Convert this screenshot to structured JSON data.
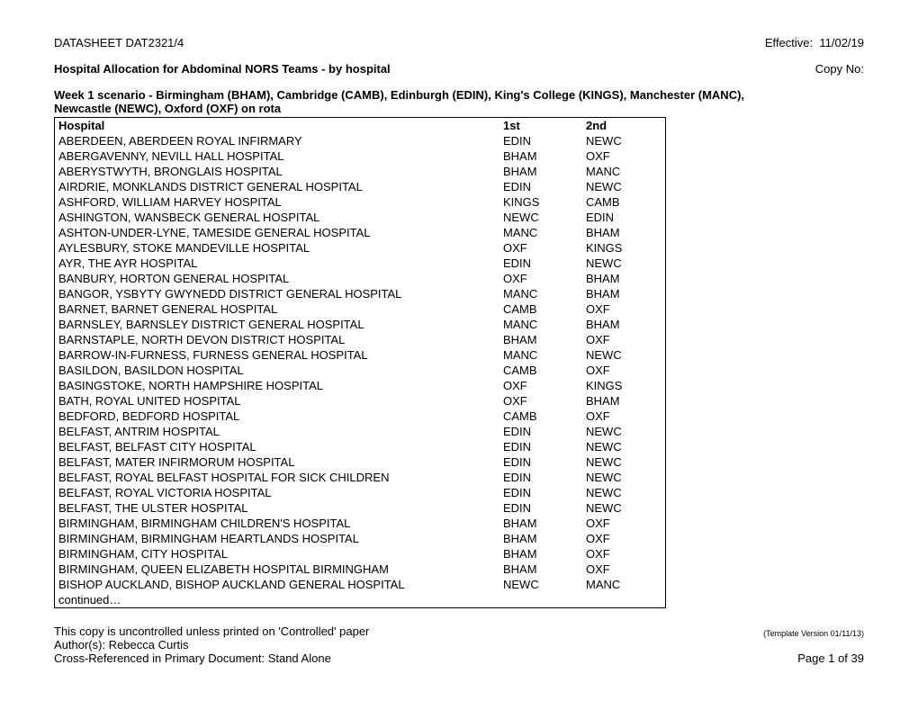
{
  "header": {
    "datasheet": "DATASHEET DAT2321/4",
    "effective_label": "Effective:",
    "effective_date": "11/02/19",
    "title": "Hospital Allocation for Abdominal NORS Teams - by hospital",
    "copy_no_label": "Copy No:"
  },
  "scenario": "Week 1 scenario - Birmingham (BHAM), Cambridge (CAMB), Edinburgh (EDIN), King's College (KINGS), Manchester (MANC), Newcastle (NEWC), Oxford (OXF) on rota",
  "table": {
    "columns": [
      "Hospital",
      "1st",
      "2nd"
    ],
    "rows": [
      [
        "ABERDEEN, ABERDEEN ROYAL INFIRMARY",
        "EDIN",
        "NEWC"
      ],
      [
        "ABERGAVENNY, NEVILL HALL HOSPITAL",
        "BHAM",
        "OXF"
      ],
      [
        "ABERYSTWYTH, BRONGLAIS HOSPITAL",
        "BHAM",
        "MANC"
      ],
      [
        "AIRDRIE, MONKLANDS DISTRICT GENERAL HOSPITAL",
        "EDIN",
        "NEWC"
      ],
      [
        "ASHFORD, WILLIAM HARVEY HOSPITAL",
        "KINGS",
        "CAMB"
      ],
      [
        "ASHINGTON, WANSBECK GENERAL HOSPITAL",
        "NEWC",
        "EDIN"
      ],
      [
        "ASHTON-UNDER-LYNE, TAMESIDE GENERAL HOSPITAL",
        "MANC",
        "BHAM"
      ],
      [
        "AYLESBURY, STOKE MANDEVILLE HOSPITAL",
        "OXF",
        "KINGS"
      ],
      [
        "AYR, THE AYR HOSPITAL",
        "EDIN",
        "NEWC"
      ],
      [
        "BANBURY, HORTON GENERAL HOSPITAL",
        "OXF",
        "BHAM"
      ],
      [
        "BANGOR, YSBYTY GWYNEDD DISTRICT GENERAL HOSPITAL",
        "MANC",
        "BHAM"
      ],
      [
        "BARNET, BARNET GENERAL HOSPITAL",
        "CAMB",
        "OXF"
      ],
      [
        "BARNSLEY, BARNSLEY DISTRICT GENERAL HOSPITAL",
        "MANC",
        "BHAM"
      ],
      [
        "BARNSTAPLE, NORTH DEVON DISTRICT HOSPITAL",
        "BHAM",
        "OXF"
      ],
      [
        "BARROW-IN-FURNESS, FURNESS GENERAL HOSPITAL",
        "MANC",
        "NEWC"
      ],
      [
        "BASILDON, BASILDON HOSPITAL",
        "CAMB",
        "OXF"
      ],
      [
        "BASINGSTOKE, NORTH HAMPSHIRE HOSPITAL",
        "OXF",
        "KINGS"
      ],
      [
        "BATH, ROYAL UNITED HOSPITAL",
        "OXF",
        "BHAM"
      ],
      [
        "BEDFORD, BEDFORD HOSPITAL",
        "CAMB",
        "OXF"
      ],
      [
        "BELFAST, ANTRIM HOSPITAL",
        "EDIN",
        "NEWC"
      ],
      [
        "BELFAST, BELFAST CITY HOSPITAL",
        "EDIN",
        "NEWC"
      ],
      [
        "BELFAST, MATER INFIRMORUM HOSPITAL",
        "EDIN",
        "NEWC"
      ],
      [
        "BELFAST, ROYAL BELFAST HOSPITAL FOR SICK CHILDREN",
        "EDIN",
        "NEWC"
      ],
      [
        "BELFAST, ROYAL VICTORIA HOSPITAL",
        "EDIN",
        "NEWC"
      ],
      [
        "BELFAST, THE ULSTER HOSPITAL",
        "EDIN",
        "NEWC"
      ],
      [
        "BIRMINGHAM, BIRMINGHAM CHILDREN'S HOSPITAL",
        "BHAM",
        "OXF"
      ],
      [
        "BIRMINGHAM, BIRMINGHAM HEARTLANDS HOSPITAL",
        "BHAM",
        "OXF"
      ],
      [
        "BIRMINGHAM, CITY HOSPITAL",
        "BHAM",
        "OXF"
      ],
      [
        "BIRMINGHAM, QUEEN ELIZABETH HOSPITAL BIRMINGHAM",
        "BHAM",
        "OXF"
      ],
      [
        "BISHOP AUCKLAND, BISHOP AUCKLAND GENERAL HOSPITAL",
        "NEWC",
        "MANC"
      ]
    ],
    "continued": "continued…"
  },
  "footer": {
    "uncontrolled": "This copy is uncontrolled unless printed on 'Controlled' paper",
    "template_version": "(Template Version 01/11/13)",
    "authors": "Author(s): Rebecca Curtis",
    "crossref": "Cross-Referenced in Primary Document: Stand Alone",
    "page": "Page 1 of 39"
  }
}
